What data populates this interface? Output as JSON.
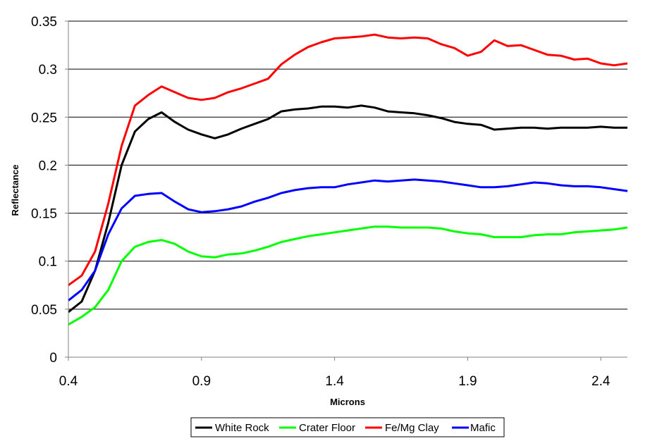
{
  "chart_data": {
    "type": "line",
    "title": "",
    "xlabel": "Microns",
    "ylabel": "Reflectance",
    "xlim": [
      0.4,
      2.5
    ],
    "ylim": [
      0,
      0.35
    ],
    "xticks": [
      0.4,
      0.9,
      1.4,
      1.9,
      2.4
    ],
    "xtick_labels": [
      "0.4",
      "0.9",
      "1.4",
      "1.9",
      "2.4"
    ],
    "yticks": [
      0,
      0.05,
      0.1,
      0.15,
      0.2,
      0.25,
      0.3,
      0.35
    ],
    "ytick_labels": [
      "0",
      "0.05",
      "0.1",
      "0.15",
      "0.2",
      "0.25",
      "0.3",
      "0.35"
    ],
    "grid": "horizontal",
    "legend_position": "bottom",
    "series": [
      {
        "name": "White Rock",
        "color": "#000000",
        "x": [
          0.4,
          0.45,
          0.5,
          0.55,
          0.6,
          0.65,
          0.7,
          0.75,
          0.8,
          0.85,
          0.9,
          0.95,
          1.0,
          1.05,
          1.1,
          1.15,
          1.2,
          1.25,
          1.3,
          1.35,
          1.4,
          1.45,
          1.5,
          1.55,
          1.6,
          1.65,
          1.7,
          1.75,
          1.8,
          1.85,
          1.9,
          1.95,
          2.0,
          2.05,
          2.1,
          2.15,
          2.2,
          2.25,
          2.3,
          2.35,
          2.4,
          2.45,
          2.5
        ],
        "y": [
          0.047,
          0.058,
          0.09,
          0.14,
          0.2,
          0.235,
          0.248,
          0.255,
          0.245,
          0.237,
          0.232,
          0.228,
          0.232,
          0.238,
          0.243,
          0.248,
          0.256,
          0.258,
          0.259,
          0.261,
          0.261,
          0.26,
          0.262,
          0.26,
          0.256,
          0.255,
          0.254,
          0.252,
          0.249,
          0.245,
          0.243,
          0.242,
          0.237,
          0.238,
          0.239,
          0.239,
          0.238,
          0.239,
          0.239,
          0.239,
          0.24,
          0.239,
          0.239
        ]
      },
      {
        "name": "Crater Floor",
        "color": "#00ff00",
        "x": [
          0.4,
          0.45,
          0.5,
          0.55,
          0.6,
          0.65,
          0.7,
          0.75,
          0.8,
          0.85,
          0.9,
          0.95,
          1.0,
          1.05,
          1.1,
          1.15,
          1.2,
          1.25,
          1.3,
          1.35,
          1.4,
          1.45,
          1.5,
          1.55,
          1.6,
          1.65,
          1.7,
          1.75,
          1.8,
          1.85,
          1.9,
          1.95,
          2.0,
          2.05,
          2.1,
          2.15,
          2.2,
          2.25,
          2.3,
          2.35,
          2.4,
          2.45,
          2.5
        ],
        "y": [
          0.034,
          0.042,
          0.052,
          0.07,
          0.1,
          0.115,
          0.12,
          0.122,
          0.118,
          0.11,
          0.105,
          0.104,
          0.107,
          0.108,
          0.111,
          0.115,
          0.12,
          0.123,
          0.126,
          0.128,
          0.13,
          0.132,
          0.134,
          0.136,
          0.136,
          0.135,
          0.135,
          0.135,
          0.134,
          0.131,
          0.129,
          0.128,
          0.125,
          0.125,
          0.125,
          0.127,
          0.128,
          0.128,
          0.13,
          0.131,
          0.132,
          0.133,
          0.135
        ]
      },
      {
        "name": "Fe/Mg Clay",
        "color": "#ff0000",
        "x": [
          0.4,
          0.45,
          0.5,
          0.55,
          0.6,
          0.65,
          0.7,
          0.75,
          0.8,
          0.85,
          0.9,
          0.95,
          1.0,
          1.05,
          1.1,
          1.15,
          1.2,
          1.25,
          1.3,
          1.35,
          1.4,
          1.45,
          1.5,
          1.55,
          1.6,
          1.65,
          1.7,
          1.75,
          1.8,
          1.85,
          1.9,
          1.95,
          2.0,
          2.05,
          2.1,
          2.15,
          2.2,
          2.25,
          2.3,
          2.35,
          2.4,
          2.45,
          2.5
        ],
        "y": [
          0.075,
          0.085,
          0.11,
          0.16,
          0.22,
          0.262,
          0.273,
          0.282,
          0.276,
          0.27,
          0.268,
          0.27,
          0.276,
          0.28,
          0.285,
          0.29,
          0.305,
          0.315,
          0.323,
          0.328,
          0.332,
          0.333,
          0.334,
          0.336,
          0.333,
          0.332,
          0.333,
          0.332,
          0.326,
          0.322,
          0.314,
          0.318,
          0.33,
          0.324,
          0.325,
          0.32,
          0.315,
          0.314,
          0.31,
          0.311,
          0.306,
          0.304,
          0.306
        ]
      },
      {
        "name": "Mafic",
        "color": "#0000ff",
        "x": [
          0.4,
          0.45,
          0.5,
          0.55,
          0.6,
          0.65,
          0.7,
          0.75,
          0.8,
          0.85,
          0.9,
          0.95,
          1.0,
          1.05,
          1.1,
          1.15,
          1.2,
          1.25,
          1.3,
          1.35,
          1.4,
          1.45,
          1.5,
          1.55,
          1.6,
          1.65,
          1.7,
          1.75,
          1.8,
          1.85,
          1.9,
          1.95,
          2.0,
          2.05,
          2.1,
          2.15,
          2.2,
          2.25,
          2.3,
          2.35,
          2.4,
          2.45,
          2.5
        ],
        "y": [
          0.059,
          0.07,
          0.09,
          0.128,
          0.155,
          0.168,
          0.17,
          0.171,
          0.162,
          0.154,
          0.151,
          0.152,
          0.154,
          0.157,
          0.162,
          0.166,
          0.171,
          0.174,
          0.176,
          0.177,
          0.177,
          0.18,
          0.182,
          0.184,
          0.183,
          0.184,
          0.185,
          0.184,
          0.183,
          0.181,
          0.179,
          0.177,
          0.177,
          0.178,
          0.18,
          0.182,
          0.181,
          0.179,
          0.178,
          0.178,
          0.177,
          0.175,
          0.173
        ]
      }
    ]
  }
}
